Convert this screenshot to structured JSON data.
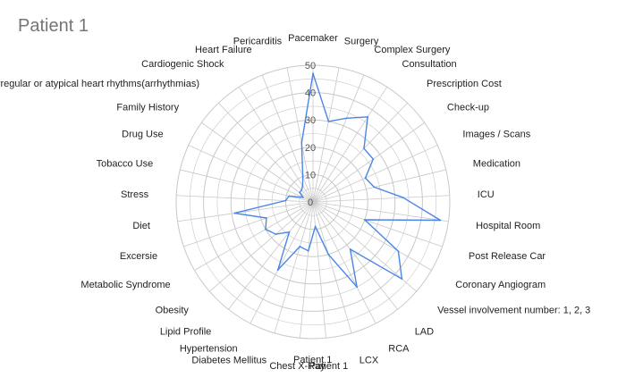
{
  "chart_data": {
    "type": "radar",
    "title": "Patient 1",
    "legend": [
      "Patient 1"
    ],
    "legend_position": "bottom",
    "r_range": [
      0,
      50
    ],
    "r_ticks": [
      0,
      10,
      20,
      30,
      40,
      50
    ],
    "series_color": "#4a86e8",
    "grid_color": "#c8c8c8",
    "categories": [
      "Pacemaker",
      "Surgery",
      "Complex Surgery",
      "Consultation",
      "Prescription Cost",
      "Check-up",
      "Images / Scans",
      "Medication",
      "ICU",
      "Hospital Room",
      "Post Release Car",
      "Coronary Angiogram",
      "Vessel involvement number: 1, 2, 3",
      "LAD",
      "RCA",
      "LCX",
      "Patient 1",
      "Chest X-Ray",
      "Diabetes Mellitus",
      "Hypertension",
      "Lipid Profile",
      "Obesity",
      "Metabolic Syndrome",
      "Excersie",
      "Diet",
      "Stress",
      "Tobacco Use",
      "Drug Use",
      "Family History",
      "Irregular or atypical heart rhythms(arrhythmias)",
      "Cardiogenic Shock",
      "Heart Failure",
      "Pericarditis"
    ],
    "series": [
      {
        "name": "Patient 1",
        "values": [
          47,
          30,
          33,
          37,
          27,
          27,
          21,
          23,
          33,
          47,
          20,
          36,
          43,
          22,
          35,
          20,
          9,
          18,
          17,
          28,
          14,
          18,
          20,
          18,
          29,
          10,
          9,
          4,
          6,
          6,
          7,
          10,
          22
        ]
      }
    ]
  }
}
